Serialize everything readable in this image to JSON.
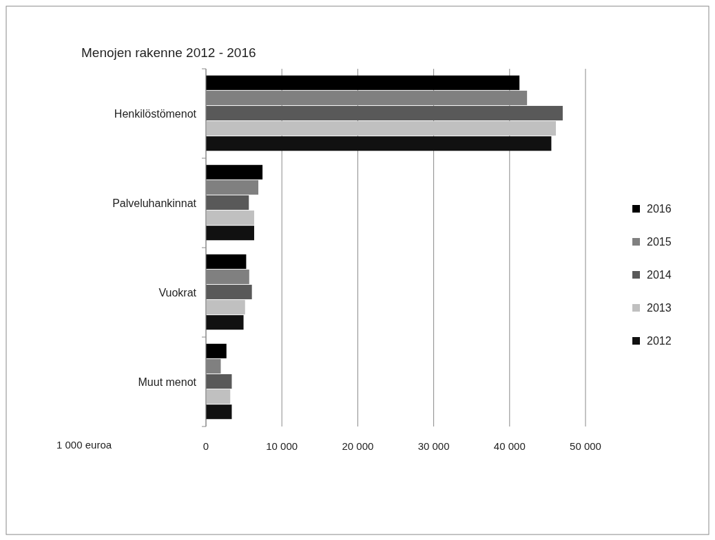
{
  "chart_data": {
    "type": "bar",
    "orientation": "horizontal",
    "title": "Menojen rakenne 2012 - 2016",
    "annotations": [
      "1 000 euroa"
    ],
    "categories": [
      "Henkilöstömenot",
      "Palveluhankinnat",
      "Vuokrat",
      "Muut menot"
    ],
    "series": [
      {
        "name": "2016",
        "color": "#000000",
        "values": [
          41300,
          7450,
          5300,
          2700
        ]
      },
      {
        "name": "2015",
        "color": "#808080",
        "values": [
          42300,
          6900,
          5700,
          1950
        ]
      },
      {
        "name": "2014",
        "color": "#595959",
        "values": [
          47000,
          5650,
          6050,
          3400
        ]
      },
      {
        "name": "2013",
        "color": "#c0c0c0",
        "values": [
          46100,
          6350,
          5150,
          3200
        ]
      },
      {
        "name": "2012",
        "color": "#111111",
        "values": [
          45500,
          6350,
          4950,
          3400
        ]
      }
    ],
    "xlim": [
      0,
      50000
    ],
    "xticks": [
      0,
      {
        "value": 10000,
        "label": "10 000"
      },
      {
        "value": 20000,
        "label": "20 000"
      },
      {
        "value": 30000,
        "label": "30 000"
      },
      {
        "value": 40000,
        "label": "40 000"
      },
      {
        "value": 50000,
        "label": "50 000"
      }
    ],
    "grid": "x",
    "legend": "right"
  }
}
